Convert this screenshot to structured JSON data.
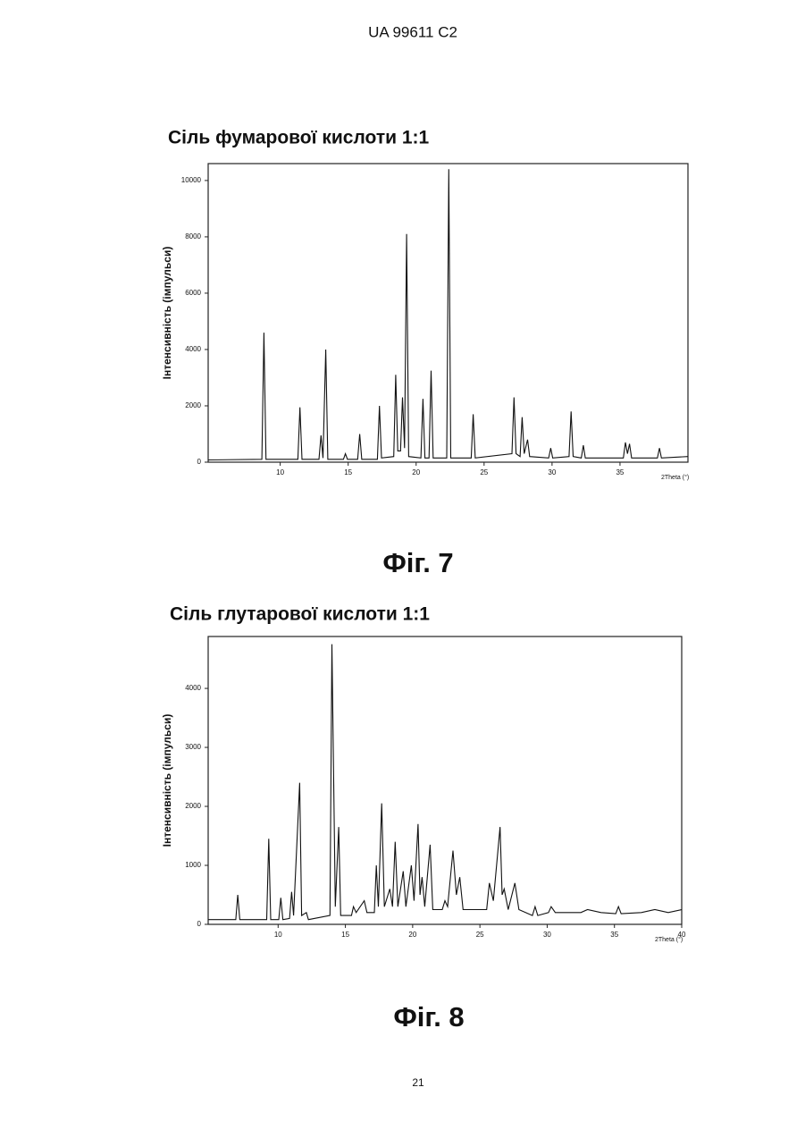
{
  "header": {
    "patent": "UA   99611   C2"
  },
  "chart_data": [
    {
      "type": "line",
      "title": "Сіль фумарової кислоти 1:1",
      "caption": "Фіг. 7",
      "x_label": "2Theta (°)",
      "y_label": "Інтенсивність (імпульси)",
      "color": "#111111",
      "xlim": [
        4.7,
        40
      ],
      "ylim": [
        0,
        10600
      ],
      "xticks": [
        10,
        15,
        20,
        25,
        30,
        35
      ],
      "yticks": [
        0,
        2000,
        4000,
        6000,
        8000,
        10000
      ],
      "x": [
        4.7,
        8.65,
        8.8,
        8.95,
        11.3,
        11.45,
        11.6,
        12.85,
        13.0,
        13.15,
        13.35,
        13.5,
        14.65,
        14.8,
        14.95,
        15.7,
        15.85,
        16.0,
        17.15,
        17.3,
        17.45,
        18.35,
        18.5,
        18.65,
        18.85,
        19.0,
        19.15,
        19.3,
        19.45,
        20.35,
        20.5,
        20.65,
        20.95,
        21.1,
        21.25,
        22.25,
        22.4,
        22.55,
        24.05,
        24.2,
        24.35,
        27.05,
        27.2,
        27.35,
        27.65,
        27.8,
        27.95,
        28.2,
        28.35,
        29.75,
        29.9,
        30.05,
        31.25,
        31.4,
        31.55,
        32.15,
        32.3,
        32.45,
        35.25,
        35.4,
        35.55,
        35.7,
        35.85,
        37.75,
        37.9,
        38.05,
        40
      ],
      "values": [
        80,
        100,
        4600,
        100,
        100,
        1950,
        100,
        100,
        950,
        150,
        4000,
        100,
        100,
        300,
        100,
        100,
        1000,
        100,
        100,
        2000,
        150,
        200,
        3100,
        400,
        400,
        2300,
        500,
        8100,
        200,
        150,
        2250,
        150,
        150,
        3250,
        150,
        150,
        10400,
        150,
        150,
        1700,
        150,
        300,
        2300,
        300,
        200,
        1600,
        300,
        800,
        200,
        150,
        500,
        150,
        200,
        1800,
        200,
        150,
        600,
        150,
        150,
        700,
        300,
        650,
        150,
        150,
        500,
        150,
        200
      ]
    },
    {
      "type": "line",
      "title": "Сіль глутарової кислоти 1:1",
      "caption": "Фіг. 8",
      "x_label": "2Theta (°)",
      "y_label": "Інтенсивність (імпульси)",
      "color": "#111111",
      "xlim": [
        4.8,
        40
      ],
      "ylim": [
        0,
        4880
      ],
      "xticks": [
        10,
        15,
        20,
        25,
        30,
        35,
        40
      ],
      "yticks": [
        0,
        1000,
        2000,
        3000,
        4000
      ],
      "x": [
        4.8,
        6.85,
        7.0,
        7.15,
        9.15,
        9.3,
        9.45,
        10.05,
        10.2,
        10.35,
        10.85,
        11.0,
        11.15,
        11.6,
        11.75,
        12.1,
        12.25,
        13.85,
        14.0,
        14.25,
        14.5,
        14.65,
        15.45,
        15.6,
        15.8,
        16.4,
        16.6,
        17.15,
        17.3,
        17.45,
        17.7,
        17.9,
        18.3,
        18.5,
        18.7,
        18.9,
        19.3,
        19.5,
        19.9,
        20.1,
        20.4,
        20.55,
        20.7,
        20.9,
        21.3,
        21.5,
        22.2,
        22.4,
        22.6,
        23.0,
        23.25,
        23.5,
        23.75,
        25.5,
        25.7,
        26.0,
        26.5,
        26.65,
        26.8,
        27.1,
        27.6,
        27.9,
        28.9,
        29.1,
        29.3,
        30.1,
        30.3,
        30.6,
        32.5,
        33.0,
        34.0,
        35.1,
        35.3,
        35.5,
        37.0,
        38.0,
        39.0,
        40
      ],
      "values": [
        80,
        80,
        500,
        80,
        80,
        1450,
        80,
        80,
        450,
        80,
        100,
        550,
        150,
        2400,
        150,
        200,
        80,
        150,
        4750,
        300,
        1650,
        150,
        150,
        300,
        200,
        400,
        200,
        200,
        1000,
        300,
        2050,
        300,
        600,
        300,
        1400,
        300,
        900,
        300,
        1000,
        400,
        1700,
        500,
        800,
        300,
        1350,
        250,
        250,
        400,
        300,
        1250,
        500,
        800,
        250,
        250,
        700,
        400,
        1650,
        500,
        600,
        250,
        700,
        250,
        150,
        300,
        150,
        200,
        300,
        200,
        200,
        250,
        200,
        180,
        300,
        180,
        200,
        250,
        200,
        250
      ]
    }
  ],
  "page_number": "21"
}
